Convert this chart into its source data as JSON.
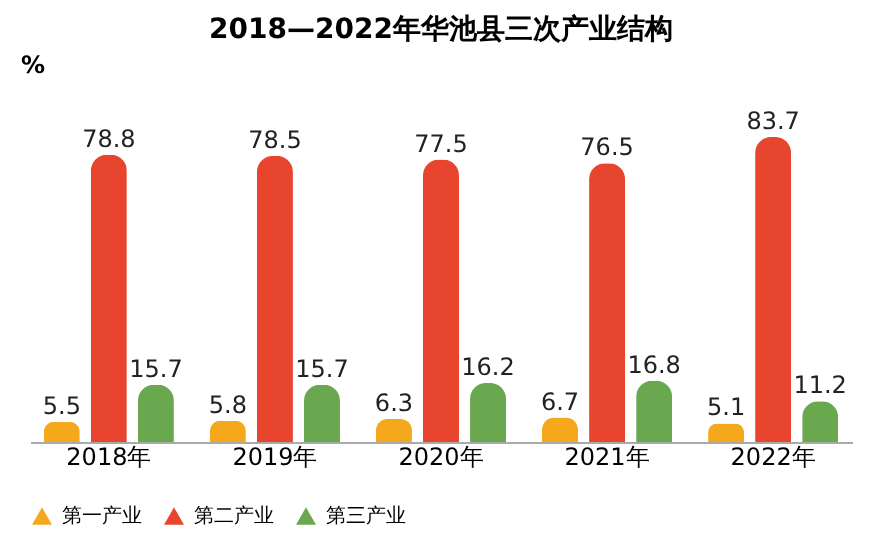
{
  "chart_data": {
    "type": "bar",
    "title": "2018—2022年华池县三次产业结构",
    "ylabel": "%",
    "categories": [
      "2018年",
      "2019年",
      "2020年",
      "2021年",
      "2022年"
    ],
    "series": [
      {
        "name": "第一产业",
        "color": "#f5a81c",
        "values": [
          5.5,
          5.8,
          6.3,
          6.7,
          5.1
        ]
      },
      {
        "name": "第二产业",
        "color": "#e8452f",
        "values": [
          78.8,
          78.5,
          77.5,
          76.5,
          83.7
        ]
      },
      {
        "name": "第三产业",
        "color": "#6aa84f",
        "values": [
          15.7,
          15.7,
          16.2,
          16.8,
          11.2
        ]
      }
    ],
    "data_labels": true,
    "legend": "bottom",
    "grid": false
  }
}
